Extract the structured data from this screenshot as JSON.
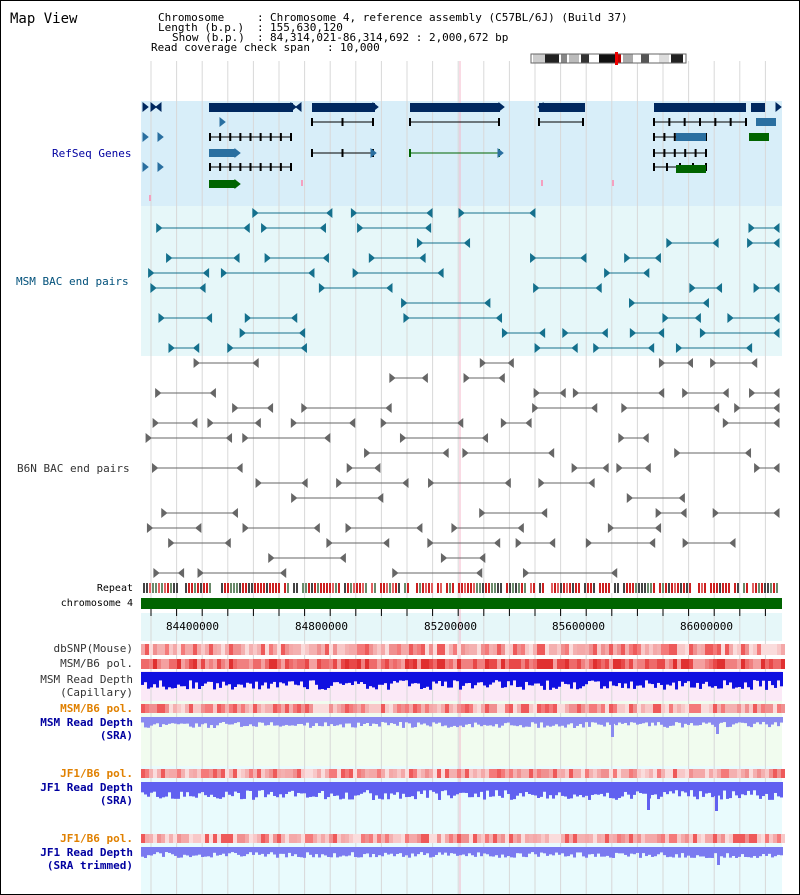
{
  "title": "Map View",
  "header": {
    "chromosome_key": "Chromosome",
    "chromosome_val": "Chromosome 4, reference assembly (C57BL/6J) (Build 37)",
    "length_key": "Length (b.p.)",
    "length_val": "155,630,120",
    "show_key": "Show (b.p.)",
    "show_val": "84,314,021-86,314,692 : 2,000,672 bp",
    "coverage_key": "Read coverage check span",
    "coverage_val": "10,000"
  },
  "tracks": {
    "refseq": "RefSeq Genes",
    "msm_bac": "MSM BAC end pairs",
    "b6n_bac": "B6N BAC end pairs",
    "repeat": "Repeat",
    "chrom": "chromosome 4",
    "dbsnp": "dbSNP(Mouse)",
    "msm_pol": "MSM/B6 pol.",
    "msm_cap_1": "MSM Read Depth",
    "msm_cap_2": "(Capillary)",
    "msm_pol2": "MSM/B6 pol.",
    "msm_sra_1": "MSM Read Depth",
    "msm_sra_2": "(SRA)",
    "jf1_pol": "JF1/B6 pol.",
    "jf1_sra_1": "JF1 Read Depth",
    "jf1_sra_2": "(SRA)",
    "jf1_pol2": "JF1/B6 pol.",
    "jf1_trim_1": "JF1 Read Depth",
    "jf1_trim_2": "(SRA trimmed)"
  },
  "axis": {
    "ticks": [
      "84400000",
      "84800000",
      "85200000",
      "85600000",
      "86000000"
    ]
  },
  "colors": {
    "refseq_bg": "#d8eef9",
    "bac_bg": "#e6f7f9",
    "gene_dark": "#00285f",
    "gene_blue": "#2a6fa0",
    "gene_green": "#006400",
    "chrom_green": "#006400",
    "label_blue": "#0000a0",
    "label_orange": "#e08000"
  }
}
